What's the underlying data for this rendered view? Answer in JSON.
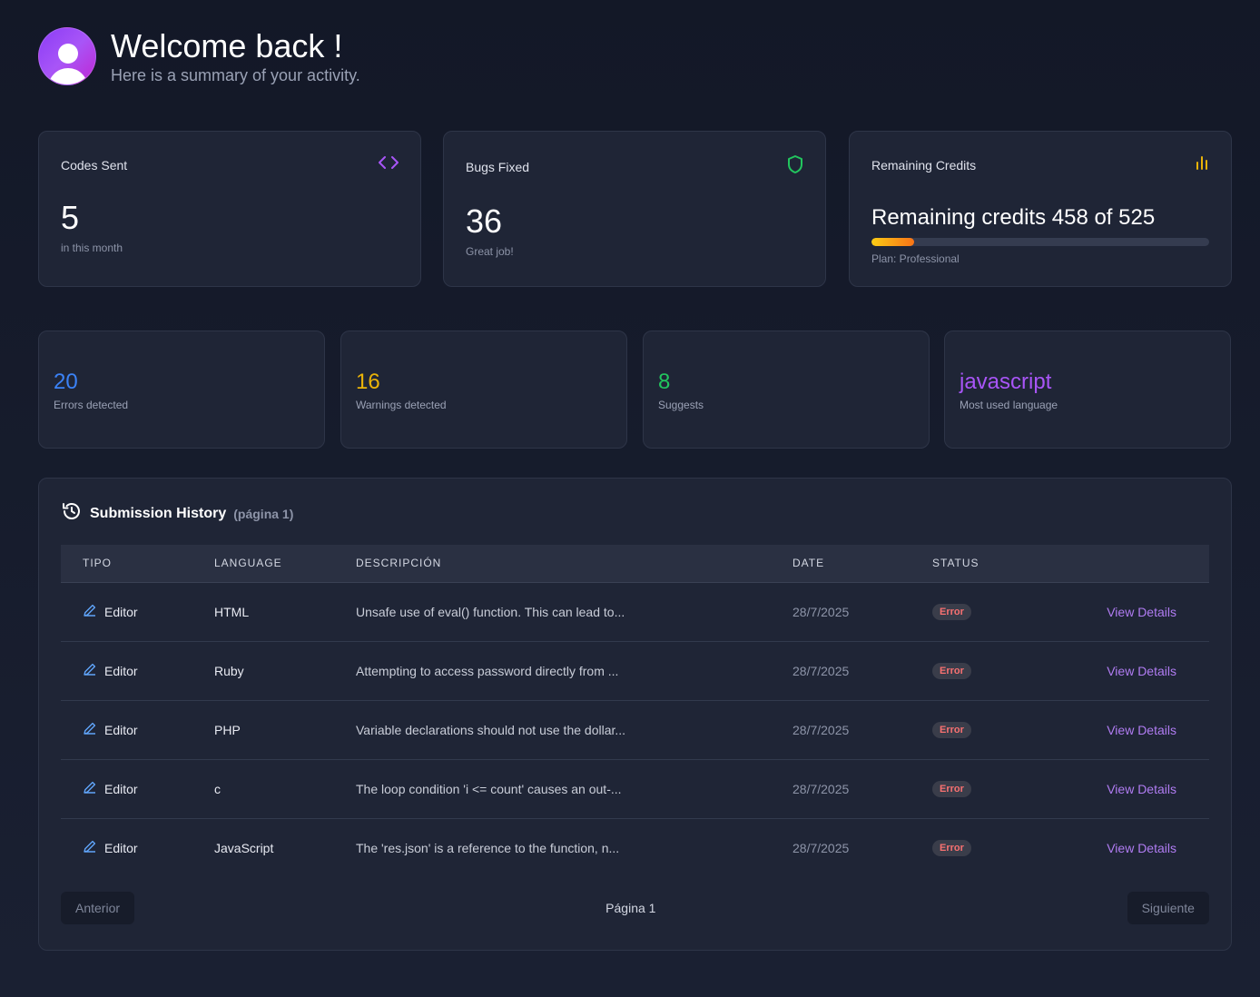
{
  "header": {
    "title": "Welcome back !",
    "subtitle": "Here is a summary of your activity."
  },
  "cards": {
    "codes_sent": {
      "title": "Codes Sent",
      "value": "5",
      "caption": "in this month",
      "icon": "code-icon",
      "icon_color": "#a855f7"
    },
    "bugs_fixed": {
      "title": "Bugs Fixed",
      "value": "36",
      "caption": "Great job!",
      "icon": "shield-icon",
      "icon_color": "#22c55e"
    },
    "credits": {
      "title": "Remaining Credits",
      "text": "Remaining credits 458 of 525",
      "remaining": 458,
      "total": 525,
      "used_fraction": 0.127,
      "plan": "Plan: Professional",
      "icon": "bar-chart-icon",
      "icon_color": "#eab308"
    }
  },
  "stats": [
    {
      "value": "20",
      "label": "Errors detected",
      "color": "#3b82f6"
    },
    {
      "value": "16",
      "label": "Warnings detected",
      "color": "#eab308"
    },
    {
      "value": "8",
      "label": "Suggests",
      "color": "#22c55e"
    },
    {
      "value": "javascript",
      "label": "Most used language",
      "color": "#a855f7"
    }
  ],
  "history": {
    "title": "Submission History",
    "page_label": "(página 1)",
    "columns": [
      "TIPO",
      "LANGUAGE",
      "DESCRIPCIÓN",
      "DATE",
      "STATUS"
    ],
    "rows": [
      {
        "tipo": "Editor",
        "language": "HTML",
        "description": "Unsafe use of eval() function. This can lead to...",
        "date": "28/7/2025",
        "status": "Error",
        "action": "View Details"
      },
      {
        "tipo": "Editor",
        "language": "Ruby",
        "description": "Attempting to access password directly from ...",
        "date": "28/7/2025",
        "status": "Error",
        "action": "View Details"
      },
      {
        "tipo": "Editor",
        "language": "PHP",
        "description": "Variable declarations should not use the dollar...",
        "date": "28/7/2025",
        "status": "Error",
        "action": "View Details"
      },
      {
        "tipo": "Editor",
        "language": "c",
        "description": "The loop condition 'i <= count' causes an out-...",
        "date": "28/7/2025",
        "status": "Error",
        "action": "View Details"
      },
      {
        "tipo": "Editor",
        "language": "JavaScript",
        "description": "The 'res.json' is a reference to the function, n...",
        "date": "28/7/2025",
        "status": "Error",
        "action": "View Details"
      }
    ],
    "pager": {
      "prev": "Anterior",
      "info": "Página 1",
      "next": "Siguiente"
    }
  }
}
